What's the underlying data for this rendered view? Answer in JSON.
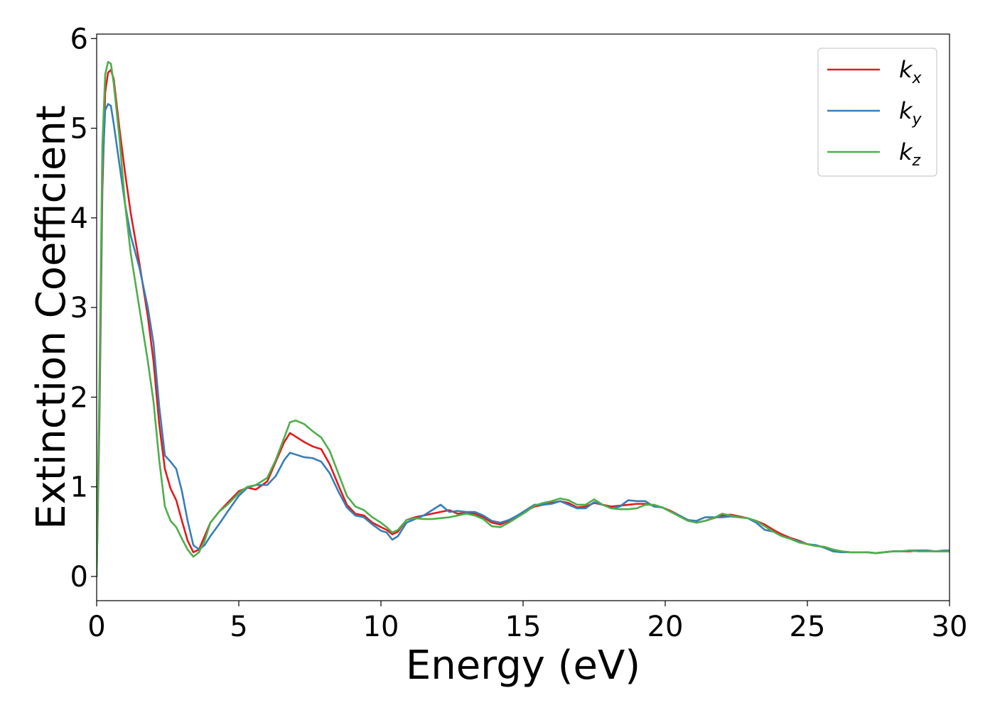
{
  "chart_data": {
    "type": "line",
    "title": "",
    "xlabel": "Energy (eV)",
    "ylabel": "Extinction Coefficient",
    "xlim": [
      0,
      30
    ],
    "ylim": [
      -0.27,
      6.05
    ],
    "xticks": [
      0,
      5,
      10,
      15,
      20,
      25,
      30
    ],
    "yticks": [
      0,
      1,
      2,
      3,
      4,
      5,
      6
    ],
    "grid": false,
    "legend_position": "top-right",
    "series": [
      {
        "name": "k_x",
        "label_main": "k",
        "label_sub": "x",
        "color": "#e41a1c",
        "x": [
          0,
          0.1,
          0.2,
          0.3,
          0.4,
          0.5,
          0.6,
          0.8,
          1.0,
          1.2,
          1.5,
          1.8,
          2.0,
          2.2,
          2.4,
          2.6,
          2.8,
          3.0,
          3.2,
          3.4,
          3.6,
          3.8,
          4.0,
          4.3,
          4.6,
          5.0,
          5.3,
          5.6,
          6.0,
          6.3,
          6.6,
          6.8,
          7.0,
          7.3,
          7.6,
          7.9,
          8.2,
          8.5,
          8.8,
          9.1,
          9.4,
          9.7,
          10.0,
          10.2,
          10.4,
          10.6,
          10.9,
          11.2,
          11.5,
          11.8,
          12.1,
          12.4,
          12.7,
          13.0,
          13.3,
          13.6,
          13.9,
          14.2,
          14.5,
          14.8,
          15.1,
          15.4,
          15.7,
          16.0,
          16.3,
          16.6,
          16.9,
          17.2,
          17.5,
          17.8,
          18.1,
          18.4,
          18.7,
          19.0,
          19.3,
          19.6,
          19.9,
          20.2,
          20.5,
          20.8,
          21.1,
          21.4,
          21.7,
          22.0,
          22.3,
          22.6,
          22.9,
          23.2,
          23.5,
          23.8,
          24.1,
          24.4,
          24.7,
          25.0,
          25.3,
          25.6,
          25.9,
          26.2,
          26.5,
          26.8,
          27.1,
          27.4,
          27.7,
          28.0,
          28.3,
          28.6,
          28.9,
          29.2,
          29.5,
          29.8,
          30.0
        ],
        "y": [
          0.0,
          1.8,
          4.3,
          5.4,
          5.62,
          5.65,
          5.55,
          5.0,
          4.5,
          4.05,
          3.5,
          2.9,
          2.4,
          1.7,
          1.2,
          0.98,
          0.85,
          0.62,
          0.4,
          0.27,
          0.3,
          0.45,
          0.6,
          0.72,
          0.82,
          0.95,
          0.99,
          0.97,
          1.06,
          1.28,
          1.5,
          1.6,
          1.56,
          1.5,
          1.45,
          1.42,
          1.25,
          1.02,
          0.8,
          0.7,
          0.68,
          0.6,
          0.55,
          0.52,
          0.47,
          0.5,
          0.63,
          0.66,
          0.68,
          0.7,
          0.72,
          0.74,
          0.7,
          0.71,
          0.7,
          0.66,
          0.6,
          0.58,
          0.62,
          0.68,
          0.73,
          0.78,
          0.8,
          0.82,
          0.84,
          0.82,
          0.77,
          0.78,
          0.82,
          0.8,
          0.78,
          0.79,
          0.8,
          0.81,
          0.81,
          0.79,
          0.77,
          0.73,
          0.68,
          0.63,
          0.6,
          0.62,
          0.65,
          0.68,
          0.69,
          0.67,
          0.65,
          0.62,
          0.58,
          0.52,
          0.47,
          0.43,
          0.4,
          0.36,
          0.34,
          0.33,
          0.3,
          0.28,
          0.27,
          0.27,
          0.27,
          0.26,
          0.27,
          0.28,
          0.28,
          0.28,
          0.29,
          0.29,
          0.28,
          0.28,
          0.28
        ]
      },
      {
        "name": "k_y",
        "label_main": "k",
        "label_sub": "y",
        "color": "#377eb8",
        "x": [
          0,
          0.1,
          0.2,
          0.3,
          0.4,
          0.5,
          0.6,
          0.8,
          1.0,
          1.2,
          1.5,
          1.8,
          2.0,
          2.2,
          2.4,
          2.6,
          2.8,
          3.0,
          3.2,
          3.4,
          3.6,
          3.8,
          4.0,
          4.3,
          4.6,
          5.0,
          5.3,
          5.6,
          6.0,
          6.3,
          6.6,
          6.8,
          7.0,
          7.3,
          7.6,
          7.9,
          8.2,
          8.5,
          8.8,
          9.1,
          9.4,
          9.7,
          10.0,
          10.2,
          10.4,
          10.6,
          10.9,
          11.2,
          11.5,
          11.8,
          12.1,
          12.4,
          12.7,
          13.0,
          13.3,
          13.6,
          13.9,
          14.2,
          14.5,
          14.8,
          15.1,
          15.4,
          15.7,
          16.0,
          16.3,
          16.6,
          16.9,
          17.2,
          17.5,
          17.8,
          18.1,
          18.4,
          18.7,
          19.0,
          19.3,
          19.6,
          19.9,
          20.2,
          20.5,
          20.8,
          21.1,
          21.4,
          21.7,
          22.0,
          22.3,
          22.6,
          22.9,
          23.2,
          23.5,
          23.8,
          24.1,
          24.4,
          24.7,
          25.0,
          25.3,
          25.6,
          25.9,
          26.2,
          26.5,
          26.8,
          27.1,
          27.4,
          27.7,
          28.0,
          28.3,
          28.6,
          28.9,
          29.2,
          29.5,
          29.8,
          30.0
        ],
        "y": [
          0.0,
          2.0,
          4.5,
          5.2,
          5.27,
          5.25,
          5.05,
          4.6,
          4.15,
          3.8,
          3.45,
          3.0,
          2.6,
          1.9,
          1.35,
          1.28,
          1.2,
          0.95,
          0.62,
          0.35,
          0.3,
          0.35,
          0.45,
          0.58,
          0.72,
          0.9,
          0.99,
          1.02,
          1.02,
          1.12,
          1.3,
          1.38,
          1.36,
          1.33,
          1.32,
          1.28,
          1.15,
          0.95,
          0.77,
          0.68,
          0.66,
          0.58,
          0.51,
          0.49,
          0.41,
          0.45,
          0.6,
          0.64,
          0.68,
          0.74,
          0.8,
          0.72,
          0.73,
          0.72,
          0.72,
          0.68,
          0.62,
          0.6,
          0.63,
          0.68,
          0.74,
          0.8,
          0.8,
          0.81,
          0.84,
          0.8,
          0.76,
          0.76,
          0.83,
          0.8,
          0.76,
          0.78,
          0.85,
          0.84,
          0.84,
          0.78,
          0.77,
          0.72,
          0.68,
          0.63,
          0.62,
          0.66,
          0.66,
          0.66,
          0.67,
          0.66,
          0.65,
          0.6,
          0.52,
          0.5,
          0.45,
          0.42,
          0.39,
          0.36,
          0.35,
          0.32,
          0.28,
          0.27,
          0.27,
          0.27,
          0.27,
          0.26,
          0.27,
          0.28,
          0.28,
          0.29,
          0.29,
          0.29,
          0.28,
          0.29,
          0.29
        ]
      },
      {
        "name": "k_z",
        "label_main": "k",
        "label_sub": "z",
        "color": "#4daf4a",
        "x": [
          0,
          0.1,
          0.2,
          0.3,
          0.4,
          0.5,
          0.6,
          0.8,
          1.0,
          1.2,
          1.5,
          1.8,
          2.0,
          2.2,
          2.4,
          2.6,
          2.8,
          3.0,
          3.2,
          3.4,
          3.6,
          3.8,
          4.0,
          4.3,
          4.6,
          5.0,
          5.3,
          5.6,
          6.0,
          6.3,
          6.6,
          6.8,
          7.0,
          7.3,
          7.6,
          7.9,
          8.2,
          8.5,
          8.8,
          9.1,
          9.4,
          9.7,
          10.0,
          10.2,
          10.4,
          10.6,
          10.9,
          11.2,
          11.5,
          11.8,
          12.1,
          12.4,
          12.7,
          13.0,
          13.3,
          13.6,
          13.9,
          14.2,
          14.5,
          14.8,
          15.1,
          15.4,
          15.7,
          16.0,
          16.3,
          16.6,
          16.9,
          17.2,
          17.5,
          17.8,
          18.1,
          18.4,
          18.7,
          19.0,
          19.3,
          19.6,
          19.9,
          20.2,
          20.5,
          20.8,
          21.1,
          21.4,
          21.7,
          22.0,
          22.3,
          22.6,
          22.9,
          23.2,
          23.5,
          23.8,
          24.1,
          24.4,
          24.7,
          25.0,
          25.3,
          25.6,
          25.9,
          26.2,
          26.5,
          26.8,
          27.1,
          27.4,
          27.7,
          28.0,
          28.3,
          28.6,
          28.9,
          29.2,
          29.5,
          29.8,
          30.0
        ],
        "y": [
          0.0,
          2.2,
          4.8,
          5.6,
          5.74,
          5.72,
          5.5,
          4.9,
          4.15,
          3.6,
          3.0,
          2.4,
          1.95,
          1.3,
          0.78,
          0.62,
          0.55,
          0.42,
          0.3,
          0.22,
          0.27,
          0.4,
          0.6,
          0.72,
          0.8,
          0.93,
          1.0,
          1.02,
          1.1,
          1.3,
          1.55,
          1.72,
          1.74,
          1.7,
          1.62,
          1.55,
          1.4,
          1.15,
          0.9,
          0.78,
          0.74,
          0.66,
          0.6,
          0.55,
          0.49,
          0.52,
          0.63,
          0.65,
          0.64,
          0.64,
          0.65,
          0.66,
          0.68,
          0.7,
          0.68,
          0.64,
          0.56,
          0.55,
          0.6,
          0.66,
          0.72,
          0.79,
          0.82,
          0.84,
          0.87,
          0.85,
          0.8,
          0.8,
          0.86,
          0.8,
          0.76,
          0.75,
          0.75,
          0.76,
          0.8,
          0.8,
          0.77,
          0.72,
          0.67,
          0.62,
          0.6,
          0.62,
          0.65,
          0.7,
          0.68,
          0.66,
          0.65,
          0.62,
          0.56,
          0.5,
          0.45,
          0.42,
          0.38,
          0.36,
          0.34,
          0.33,
          0.3,
          0.28,
          0.27,
          0.27,
          0.27,
          0.26,
          0.27,
          0.28,
          0.28,
          0.29,
          0.28,
          0.28,
          0.28,
          0.28,
          0.28
        ]
      }
    ]
  }
}
